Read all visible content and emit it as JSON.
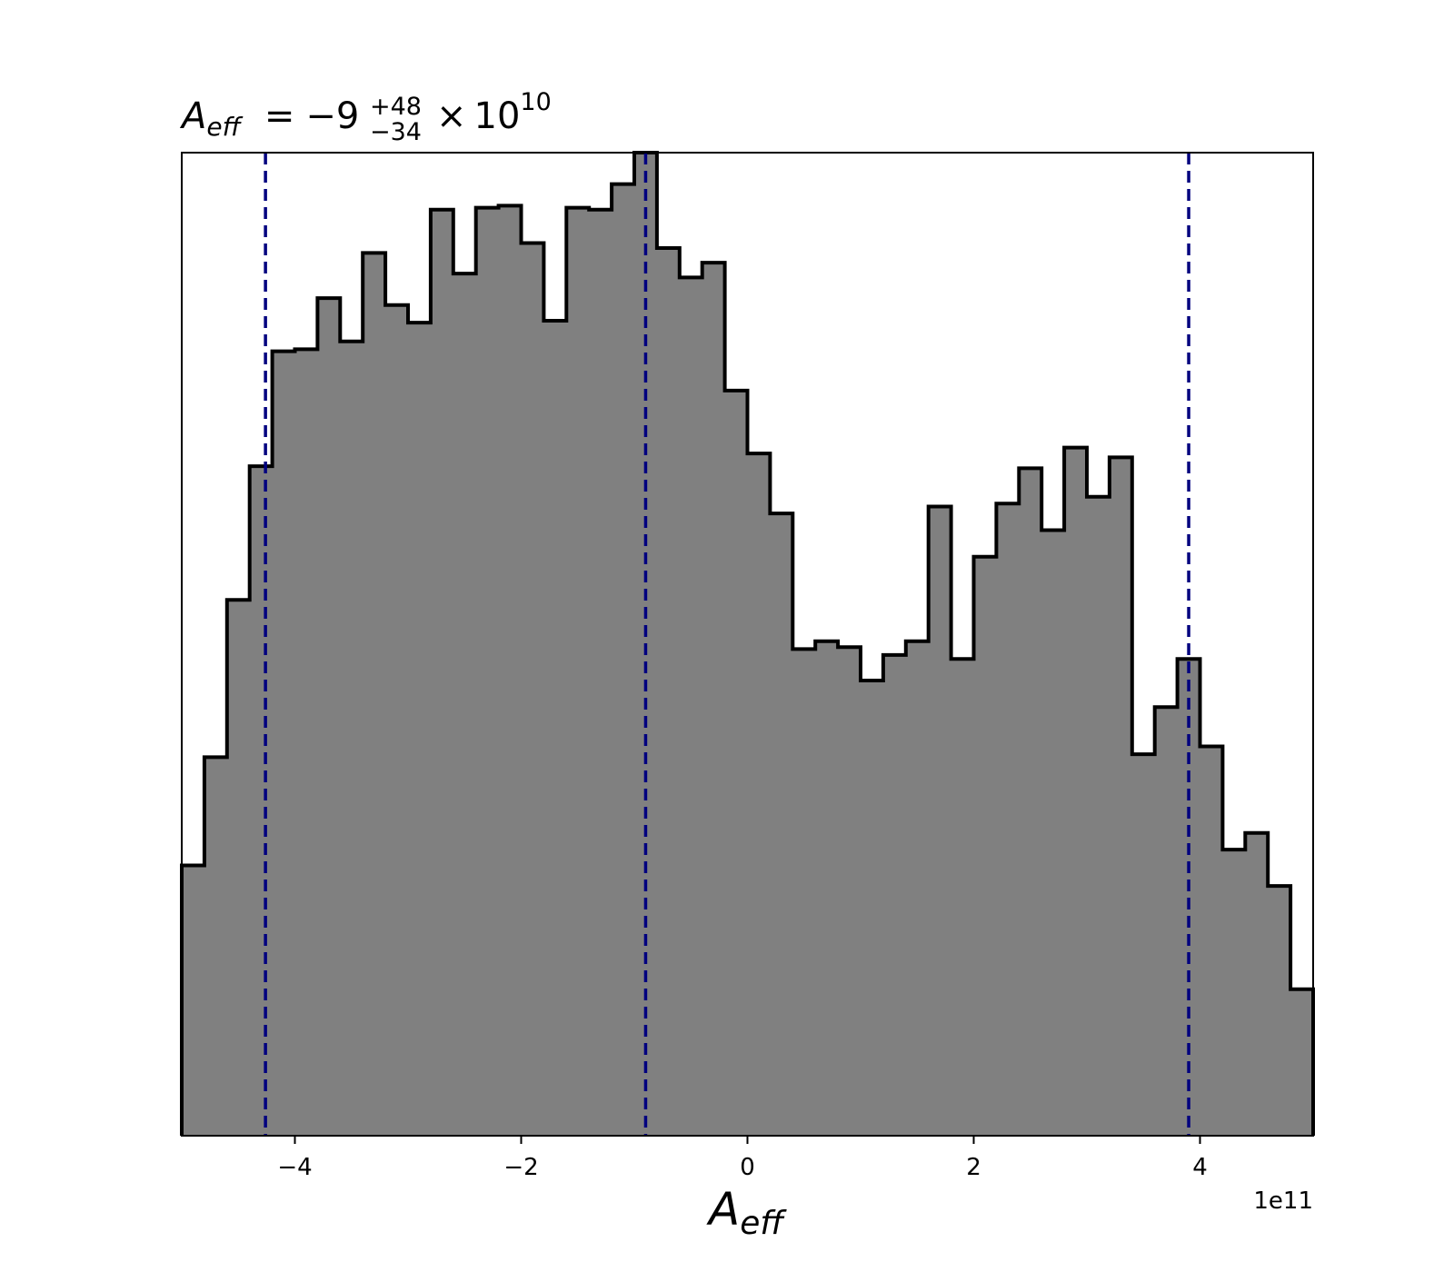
{
  "chart_data": {
    "type": "bar",
    "histogram": true,
    "title": {
      "symbol": "A",
      "subscript": "eff",
      "equals": "=",
      "value": "−9",
      "upper": "+48",
      "lower": "−34",
      "times": "×",
      "base": "10",
      "exponent": "10"
    },
    "xlabel": {
      "symbol": "A",
      "subscript": "eff"
    },
    "ylabel": "",
    "x_multiplier": "1e11",
    "xlim": [
      -5,
      5
    ],
    "ylim": [
      0,
      1
    ],
    "x_ticks": [
      -4,
      -2,
      0,
      2,
      4
    ],
    "x_tick_labels": [
      "−4",
      "−2",
      "0",
      "2",
      "4"
    ],
    "show_y_ticks": false,
    "grid": false,
    "colors": {
      "fill": "#808080",
      "edge": "#000000",
      "quantile_line": "#00007f"
    },
    "bin_edges": [
      -5.0,
      -4.8,
      -4.6,
      -4.4,
      -4.2,
      -4.0,
      -3.8,
      -3.6,
      -3.4,
      -3.2,
      -3.0,
      -2.8,
      -2.6,
      -2.4,
      -2.2,
      -2.0,
      -1.8,
      -1.6,
      -1.4,
      -1.2,
      -1.0,
      -0.8,
      -0.6,
      -0.4,
      -0.2,
      0.0,
      0.2,
      0.4,
      0.6,
      0.8,
      1.0,
      1.2,
      1.4,
      1.6,
      1.8,
      2.0,
      2.2,
      2.4,
      2.6,
      2.8,
      3.0,
      3.2,
      3.4,
      3.6,
      3.8,
      4.0,
      4.2,
      4.4,
      4.6,
      4.8,
      5.0
    ],
    "counts": [
      0.275,
      0.385,
      0.545,
      0.681,
      0.798,
      0.8,
      0.852,
      0.808,
      0.898,
      0.845,
      0.827,
      0.942,
      0.877,
      0.944,
      0.946,
      0.908,
      0.829,
      0.944,
      0.942,
      0.968,
      1.0,
      0.903,
      0.873,
      0.888,
      0.758,
      0.694,
      0.633,
      0.495,
      0.503,
      0.497,
      0.463,
      0.489,
      0.503,
      0.64,
      0.485,
      0.589,
      0.643,
      0.679,
      0.616,
      0.7,
      0.65,
      0.69,
      0.388,
      0.436,
      0.485,
      0.396,
      0.291,
      0.308,
      0.254,
      0.149
    ],
    "quantile_lines": [
      -4.26,
      -0.9,
      3.9
    ]
  }
}
